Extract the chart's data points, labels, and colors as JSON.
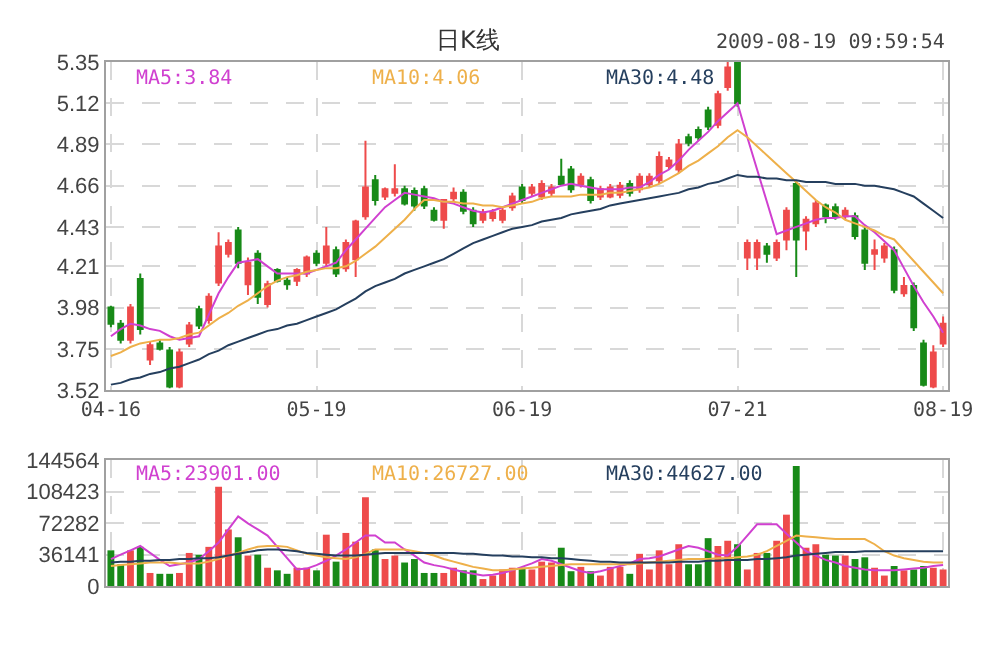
{
  "chart_data": [
    {
      "type": "candlestick",
      "title": "日K线",
      "annotations": [
        "2009-08-19 09:59:54"
      ],
      "categories": [
        "04-16",
        null,
        null,
        null,
        null,
        null,
        null,
        null,
        null,
        null,
        null,
        null,
        null,
        null,
        null,
        null,
        null,
        null,
        null,
        null,
        null,
        "05-19",
        null,
        null,
        null,
        null,
        null,
        null,
        null,
        null,
        null,
        null,
        null,
        null,
        null,
        null,
        null,
        null,
        null,
        null,
        null,
        null,
        "06-19",
        null,
        null,
        null,
        null,
        null,
        null,
        null,
        null,
        null,
        null,
        null,
        null,
        null,
        null,
        null,
        null,
        null,
        null,
        null,
        null,
        null,
        "07-21",
        null,
        null,
        null,
        null,
        null,
        null,
        null,
        null,
        null,
        null,
        null,
        null,
        null,
        null,
        null,
        null,
        null,
        null,
        null,
        null,
        "08-19"
      ],
      "ohlc": [
        [
          3.98,
          3.99,
          3.87,
          3.89
        ],
        [
          3.89,
          3.91,
          3.78,
          3.8
        ],
        [
          3.8,
          4.0,
          3.78,
          3.98
        ],
        [
          4.14,
          4.17,
          3.83,
          3.86
        ],
        [
          3.69,
          3.79,
          3.66,
          3.77
        ],
        [
          3.78,
          3.8,
          3.74,
          3.75
        ],
        [
          3.74,
          3.76,
          3.53,
          3.54
        ],
        [
          3.54,
          3.75,
          3.53,
          3.73
        ],
        [
          3.78,
          3.9,
          3.76,
          3.88
        ],
        [
          3.97,
          3.99,
          3.86,
          3.88
        ],
        [
          3.91,
          4.06,
          3.89,
          4.04
        ],
        [
          4.12,
          4.4,
          4.1,
          4.32
        ],
        [
          4.28,
          4.36,
          4.26,
          4.34
        ],
        [
          4.41,
          4.43,
          4.2,
          4.23
        ],
        [
          4.11,
          4.26,
          4.05,
          4.23
        ],
        [
          4.28,
          4.3,
          4.0,
          4.04
        ],
        [
          4.0,
          4.13,
          3.98,
          4.11
        ],
        [
          4.19,
          4.2,
          4.12,
          4.13
        ],
        [
          4.13,
          4.15,
          4.08,
          4.11
        ],
        [
          4.13,
          4.2,
          4.1,
          4.19
        ],
        [
          4.17,
          4.27,
          4.15,
          4.26
        ],
        [
          4.28,
          4.3,
          4.21,
          4.23
        ],
        [
          4.23,
          4.43,
          4.21,
          4.32
        ],
        [
          4.3,
          4.32,
          4.15,
          4.17
        ],
        [
          4.2,
          4.36,
          4.18,
          4.34
        ],
        [
          4.25,
          4.47,
          4.15,
          4.46
        ],
        [
          4.49,
          4.91,
          4.47,
          4.65
        ],
        [
          4.69,
          4.72,
          4.55,
          4.58
        ],
        [
          4.6,
          4.65,
          4.58,
          4.64
        ],
        [
          4.62,
          4.78,
          4.6,
          4.64
        ],
        [
          4.64,
          4.66,
          4.55,
          4.56
        ],
        [
          4.63,
          4.65,
          4.52,
          4.55
        ],
        [
          4.64,
          4.66,
          4.53,
          4.55
        ],
        [
          4.52,
          4.54,
          4.46,
          4.47
        ],
        [
          4.47,
          4.58,
          4.42,
          4.58
        ],
        [
          4.59,
          4.65,
          4.57,
          4.62
        ],
        [
          4.62,
          4.64,
          4.5,
          4.52
        ],
        [
          4.52,
          4.54,
          4.43,
          4.45
        ],
        [
          4.47,
          4.53,
          4.45,
          4.51
        ],
        [
          4.48,
          4.53,
          4.46,
          4.51
        ],
        [
          4.47,
          4.54,
          4.45,
          4.52
        ],
        [
          4.54,
          4.62,
          4.52,
          4.6
        ],
        [
          4.65,
          4.67,
          4.56,
          4.58
        ],
        [
          4.62,
          4.67,
          4.6,
          4.65
        ],
        [
          4.6,
          4.69,
          4.58,
          4.67
        ],
        [
          4.62,
          4.67,
          4.6,
          4.65
        ],
        [
          4.71,
          4.81,
          4.66,
          4.67
        ],
        [
          4.75,
          4.77,
          4.62,
          4.64
        ],
        [
          4.67,
          4.73,
          4.65,
          4.71
        ],
        [
          4.69,
          4.71,
          4.56,
          4.58
        ],
        [
          4.6,
          4.66,
          4.58,
          4.64
        ],
        [
          4.6,
          4.67,
          4.59,
          4.65
        ],
        [
          4.61,
          4.68,
          4.59,
          4.66
        ],
        [
          4.67,
          4.69,
          4.6,
          4.62
        ],
        [
          4.64,
          4.73,
          4.62,
          4.71
        ],
        [
          4.67,
          4.73,
          4.65,
          4.71
        ],
        [
          4.69,
          4.85,
          4.67,
          4.82
        ],
        [
          4.77,
          4.82,
          4.75,
          4.8
        ],
        [
          4.75,
          4.92,
          4.73,
          4.89
        ],
        [
          4.93,
          4.95,
          4.88,
          4.9
        ],
        [
          4.97,
          4.99,
          4.91,
          4.93
        ],
        [
          5.08,
          5.1,
          4.97,
          4.99
        ],
        [
          5.0,
          5.19,
          4.98,
          5.17
        ],
        [
          5.21,
          5.35,
          5.19,
          5.32
        ],
        [
          5.35,
          5.35,
          5.1,
          5.12
        ],
        [
          4.26,
          4.36,
          4.19,
          4.34
        ],
        [
          4.26,
          4.36,
          4.19,
          4.34
        ],
        [
          4.32,
          4.34,
          4.23,
          4.28
        ],
        [
          4.26,
          4.36,
          4.24,
          4.34
        ],
        [
          4.36,
          4.54,
          4.3,
          4.52
        ],
        [
          4.67,
          4.69,
          4.15,
          4.36
        ],
        [
          4.41,
          4.49,
          4.3,
          4.47
        ],
        [
          4.45,
          4.58,
          4.43,
          4.56
        ],
        [
          4.55,
          4.56,
          4.45,
          4.49
        ],
        [
          4.54,
          4.56,
          4.47,
          4.49
        ],
        [
          4.49,
          4.54,
          4.47,
          4.52
        ],
        [
          4.49,
          4.51,
          4.36,
          4.38
        ],
        [
          4.41,
          4.43,
          4.19,
          4.23
        ],
        [
          4.28,
          4.36,
          4.19,
          4.3
        ],
        [
          4.26,
          4.34,
          4.23,
          4.32
        ],
        [
          4.3,
          4.32,
          4.06,
          4.08
        ],
        [
          4.06,
          4.15,
          4.04,
          4.1
        ],
        [
          4.1,
          4.12,
          3.85,
          3.87
        ],
        [
          3.78,
          3.8,
          3.54,
          3.55
        ],
        [
          3.54,
          3.77,
          3.53,
          3.73
        ],
        [
          3.78,
          3.93,
          3.76,
          3.89
        ]
      ],
      "colors": [
        "#188a18",
        "#188a18",
        "#ee4b4b",
        "#188a18",
        "#ee4b4b",
        "#188a18",
        "#188a18",
        "#ee4b4b",
        "#ee4b4b",
        "#188a18",
        "#ee4b4b",
        "#ee4b4b",
        "#ee4b4b",
        "#188a18",
        "#ee4b4b",
        "#188a18",
        "#ee4b4b",
        "#188a18",
        "#188a18",
        "#ee4b4b",
        "#ee4b4b",
        "#188a18",
        "#ee4b4b",
        "#188a18",
        "#ee4b4b",
        "#ee4b4b",
        "#ee4b4b",
        "#188a18",
        "#ee4b4b",
        "#ee4b4b",
        "#188a18",
        "#188a18",
        "#188a18",
        "#188a18",
        "#ee4b4b",
        "#ee4b4b",
        "#188a18",
        "#188a18",
        "#ee4b4b",
        "#ee4b4b",
        "#ee4b4b",
        "#ee4b4b",
        "#188a18",
        "#ee4b4b",
        "#ee4b4b",
        "#ee4b4b",
        "#188a18",
        "#188a18",
        "#ee4b4b",
        "#188a18",
        "#ee4b4b",
        "#ee4b4b",
        "#ee4b4b",
        "#188a18",
        "#ee4b4b",
        "#ee4b4b",
        "#ee4b4b",
        "#ee4b4b",
        "#ee4b4b",
        "#188a18",
        "#188a18",
        "#188a18",
        "#ee4b4b",
        "#ee4b4b",
        "#188a18",
        "#ee4b4b",
        "#ee4b4b",
        "#188a18",
        "#ee4b4b",
        "#ee4b4b",
        "#188a18",
        "#ee4b4b",
        "#ee4b4b",
        "#188a18",
        "#188a18",
        "#ee4b4b",
        "#188a18",
        "#188a18",
        "#ee4b4b",
        "#ee4b4b",
        "#188a18",
        "#ee4b4b",
        "#188a18",
        "#188a18",
        "#ee4b4b",
        "#ee4b4b"
      ],
      "series": [
        {
          "type": "line",
          "name": "MA5:3.84",
          "color": "#d040d0",
          "values": [
            3.82,
            3.86,
            3.89,
            3.88,
            3.86,
            3.85,
            3.82,
            3.8,
            3.81,
            3.82,
            3.94,
            4.06,
            4.15,
            4.23,
            4.24,
            4.25,
            4.21,
            4.17,
            4.17,
            4.17,
            4.17,
            4.19,
            4.21,
            4.23,
            4.3,
            4.36,
            4.42,
            4.48,
            4.54,
            4.58,
            4.62,
            4.61,
            4.6,
            4.59,
            4.57,
            4.56,
            4.54,
            4.52,
            4.51,
            4.52,
            4.54,
            4.56,
            4.58,
            4.6,
            4.62,
            4.64,
            4.66,
            4.67,
            4.66,
            4.65,
            4.64,
            4.64,
            4.64,
            4.65,
            4.65,
            4.68,
            4.72,
            4.75,
            4.8,
            4.86,
            4.91,
            4.96,
            5.02,
            5.07,
            5.12,
            4.93,
            4.75,
            4.57,
            4.39,
            4.41,
            4.43,
            4.45,
            4.47,
            4.48,
            4.48,
            4.49,
            4.49,
            4.44,
            4.4,
            4.35,
            4.3,
            4.2,
            4.1,
            4.01,
            3.93,
            3.84
          ]
        },
        {
          "type": "line",
          "name": "MA10:4.06",
          "color": "#eeb04a",
          "values": [
            3.71,
            3.73,
            3.76,
            3.78,
            3.79,
            3.8,
            3.8,
            3.81,
            3.83,
            3.84,
            3.88,
            3.92,
            3.95,
            3.99,
            4.02,
            4.06,
            4.1,
            4.13,
            4.15,
            4.16,
            4.18,
            4.19,
            4.2,
            4.2,
            4.21,
            4.24,
            4.28,
            4.32,
            4.37,
            4.42,
            4.47,
            4.53,
            4.58,
            4.58,
            4.57,
            4.57,
            4.56,
            4.56,
            4.55,
            4.55,
            4.54,
            4.55,
            4.56,
            4.57,
            4.59,
            4.6,
            4.6,
            4.6,
            4.61,
            4.61,
            4.61,
            4.62,
            4.62,
            4.63,
            4.64,
            4.65,
            4.67,
            4.7,
            4.73,
            4.77,
            4.8,
            4.84,
            4.88,
            4.93,
            4.97,
            4.93,
            4.88,
            4.83,
            4.78,
            4.73,
            4.68,
            4.63,
            4.58,
            4.54,
            4.51,
            4.47,
            4.45,
            4.43,
            4.41,
            4.38,
            4.36,
            4.3,
            4.24,
            4.18,
            4.12,
            4.06
          ]
        },
        {
          "type": "line",
          "name": "MA30:4.48",
          "color": "#253f5e",
          "values": [
            3.55,
            3.56,
            3.58,
            3.59,
            3.61,
            3.62,
            3.64,
            3.65,
            3.67,
            3.69,
            3.72,
            3.74,
            3.77,
            3.79,
            3.81,
            3.83,
            3.85,
            3.86,
            3.88,
            3.89,
            3.91,
            3.93,
            3.95,
            3.97,
            4.0,
            4.03,
            4.07,
            4.1,
            4.12,
            4.14,
            4.17,
            4.19,
            4.21,
            4.23,
            4.25,
            4.28,
            4.31,
            4.34,
            4.36,
            4.38,
            4.4,
            4.42,
            4.43,
            4.44,
            4.46,
            4.47,
            4.48,
            4.5,
            4.51,
            4.52,
            4.53,
            4.55,
            4.56,
            4.57,
            4.58,
            4.59,
            4.6,
            4.61,
            4.62,
            4.64,
            4.65,
            4.67,
            4.68,
            4.7,
            4.72,
            4.71,
            4.71,
            4.7,
            4.7,
            4.69,
            4.69,
            4.68,
            4.68,
            4.68,
            4.67,
            4.67,
            4.67,
            4.66,
            4.66,
            4.65,
            4.64,
            4.62,
            4.6,
            4.56,
            4.52,
            4.48
          ]
        }
      ],
      "ylim": [
        3.52,
        5.35
      ],
      "yticks": [
        3.52,
        3.75,
        3.98,
        4.21,
        4.43,
        4.66,
        4.89,
        5.12,
        5.35
      ],
      "grid": true
    },
    {
      "type": "bar",
      "tick_labels": "y",
      "categories": [
        null,
        null,
        null,
        null,
        null,
        null,
        null,
        null,
        null,
        null,
        null,
        null,
        null,
        null,
        null,
        null,
        null,
        null,
        null,
        null,
        null,
        null,
        null,
        null,
        null,
        null,
        null,
        null,
        null,
        null,
        null,
        null,
        null,
        null,
        null,
        null,
        null,
        null,
        null,
        null,
        null,
        null,
        null,
        null,
        null,
        null,
        null,
        null,
        null,
        null,
        null,
        null,
        null,
        null,
        null,
        null,
        null,
        null,
        null,
        null,
        null,
        null,
        null,
        null,
        null,
        null,
        null,
        null,
        null,
        null,
        null,
        null,
        null,
        null,
        null,
        null,
        null,
        null,
        null,
        null,
        null,
        null,
        null,
        null,
        null,
        null
      ],
      "values": [
        41000,
        25000,
        41000,
        45000,
        15000,
        14000,
        14000,
        15000,
        38000,
        36000,
        45000,
        114000,
        65000,
        56000,
        35000,
        36000,
        21000,
        18000,
        14000,
        21000,
        21000,
        18000,
        59000,
        28000,
        61000,
        51000,
        102000,
        42000,
        31000,
        35000,
        27000,
        31000,
        15000,
        15000,
        15000,
        21000,
        18000,
        18000,
        8000,
        12000,
        19000,
        21000,
        21000,
        19000,
        28000,
        27000,
        44000,
        17000,
        22000,
        17000,
        12000,
        22000,
        22000,
        14000,
        37000,
        19000,
        41000,
        25000,
        48000,
        25000,
        25000,
        55000,
        46000,
        52000,
        48000,
        19000,
        38000,
        38000,
        52000,
        82000,
        138000,
        44000,
        48000,
        36000,
        35000,
        35000,
        31000,
        33000,
        21000,
        12000,
        23000,
        18000,
        19000,
        23000,
        21000,
        19000
      ],
      "colors": [
        "#188a18",
        "#188a18",
        "#ee4b4b",
        "#188a18",
        "#ee4b4b",
        "#188a18",
        "#188a18",
        "#ee4b4b",
        "#ee4b4b",
        "#188a18",
        "#ee4b4b",
        "#ee4b4b",
        "#ee4b4b",
        "#188a18",
        "#ee4b4b",
        "#188a18",
        "#ee4b4b",
        "#188a18",
        "#188a18",
        "#ee4b4b",
        "#ee4b4b",
        "#188a18",
        "#ee4b4b",
        "#188a18",
        "#ee4b4b",
        "#ee4b4b",
        "#ee4b4b",
        "#188a18",
        "#ee4b4b",
        "#ee4b4b",
        "#188a18",
        "#188a18",
        "#188a18",
        "#188a18",
        "#ee4b4b",
        "#ee4b4b",
        "#188a18",
        "#188a18",
        "#ee4b4b",
        "#ee4b4b",
        "#ee4b4b",
        "#ee4b4b",
        "#188a18",
        "#ee4b4b",
        "#ee4b4b",
        "#ee4b4b",
        "#188a18",
        "#188a18",
        "#ee4b4b",
        "#188a18",
        "#ee4b4b",
        "#ee4b4b",
        "#ee4b4b",
        "#188a18",
        "#ee4b4b",
        "#ee4b4b",
        "#ee4b4b",
        "#ee4b4b",
        "#ee4b4b",
        "#188a18",
        "#188a18",
        "#188a18",
        "#ee4b4b",
        "#ee4b4b",
        "#188a18",
        "#ee4b4b",
        "#ee4b4b",
        "#188a18",
        "#ee4b4b",
        "#ee4b4b",
        "#188a18",
        "#ee4b4b",
        "#ee4b4b",
        "#188a18",
        "#188a18",
        "#ee4b4b",
        "#188a18",
        "#188a18",
        "#ee4b4b",
        "#ee4b4b",
        "#188a18",
        "#ee4b4b",
        "#188a18",
        "#188a18",
        "#ee4b4b",
        "#ee4b4b"
      ],
      "series": [
        {
          "type": "line",
          "name": "MA5:23901.00",
          "color": "#d040d0",
          "values": [
            31000,
            36000,
            41000,
            46000,
            38000,
            30000,
            23000,
            25000,
            27000,
            31000,
            40000,
            50000,
            65000,
            80000,
            72000,
            65000,
            58000,
            45000,
            32000,
            19000,
            20000,
            24000,
            29000,
            35000,
            42000,
            50000,
            58000,
            58000,
            50000,
            50000,
            42000,
            35000,
            27000,
            24000,
            22000,
            19000,
            16000,
            14000,
            12000,
            13000,
            15000,
            18000,
            22000,
            26000,
            31000,
            29000,
            25000,
            21000,
            17000,
            15000,
            17000,
            20000,
            23000,
            26000,
            31000,
            32000,
            34000,
            38000,
            42000,
            46000,
            44000,
            40000,
            36000,
            35000,
            45000,
            58000,
            71000,
            71000,
            71000,
            60000,
            50000,
            40000,
            35000,
            30000,
            27000,
            23000,
            21000,
            19000,
            18000,
            18000,
            18000,
            19000,
            20000,
            21000,
            23000,
            24000
          ]
        },
        {
          "type": "line",
          "name": "MA10:26727.00",
          "color": "#eeb04a",
          "values": [
            23000,
            24000,
            25000,
            26000,
            27000,
            27000,
            27000,
            26000,
            26000,
            26000,
            28000,
            31000,
            35000,
            38000,
            42000,
            45000,
            46000,
            46000,
            45000,
            41000,
            37000,
            35000,
            33000,
            32000,
            31000,
            33000,
            37000,
            42000,
            42000,
            42000,
            42000,
            40000,
            38000,
            35000,
            31000,
            28000,
            25000,
            22000,
            20000,
            18000,
            18000,
            19000,
            20000,
            21000,
            22000,
            23000,
            24000,
            25000,
            25000,
            25000,
            25000,
            25000,
            25000,
            25000,
            26000,
            27000,
            28000,
            29000,
            30000,
            31000,
            31000,
            31000,
            32000,
            32000,
            33000,
            34000,
            36000,
            40000,
            46000,
            52000,
            58000,
            57000,
            56000,
            55000,
            54000,
            54000,
            54000,
            54000,
            48000,
            40000,
            35000,
            32000,
            30000,
            28000,
            27000,
            27000
          ]
        },
        {
          "type": "line",
          "name": "MA30:44627.00",
          "color": "#253f5e",
          "values": [
            27000,
            28000,
            28000,
            29000,
            29000,
            30000,
            30000,
            31000,
            31000,
            32000,
            32000,
            33000,
            35000,
            37000,
            39000,
            41000,
            42000,
            42000,
            41000,
            40000,
            38000,
            37000,
            36000,
            35000,
            35000,
            35000,
            36000,
            37000,
            38000,
            38000,
            38000,
            38000,
            38000,
            38000,
            38000,
            38000,
            37000,
            37000,
            36000,
            35000,
            35000,
            34000,
            34000,
            33000,
            33000,
            32000,
            32000,
            31000,
            30000,
            29000,
            28000,
            28000,
            27000,
            27000,
            27000,
            27000,
            27000,
            27000,
            28000,
            28000,
            28000,
            29000,
            29000,
            30000,
            30000,
            30000,
            31000,
            31000,
            32000,
            33000,
            35000,
            36000,
            37000,
            38000,
            39000,
            39000,
            39000,
            40000,
            40000,
            40000,
            40000,
            40000,
            40000,
            40000,
            40000,
            40000
          ]
        }
      ],
      "ylim": [
        0,
        144564
      ],
      "yticks": [
        0,
        36141,
        72282,
        108423,
        144564
      ],
      "grid": true
    }
  ]
}
